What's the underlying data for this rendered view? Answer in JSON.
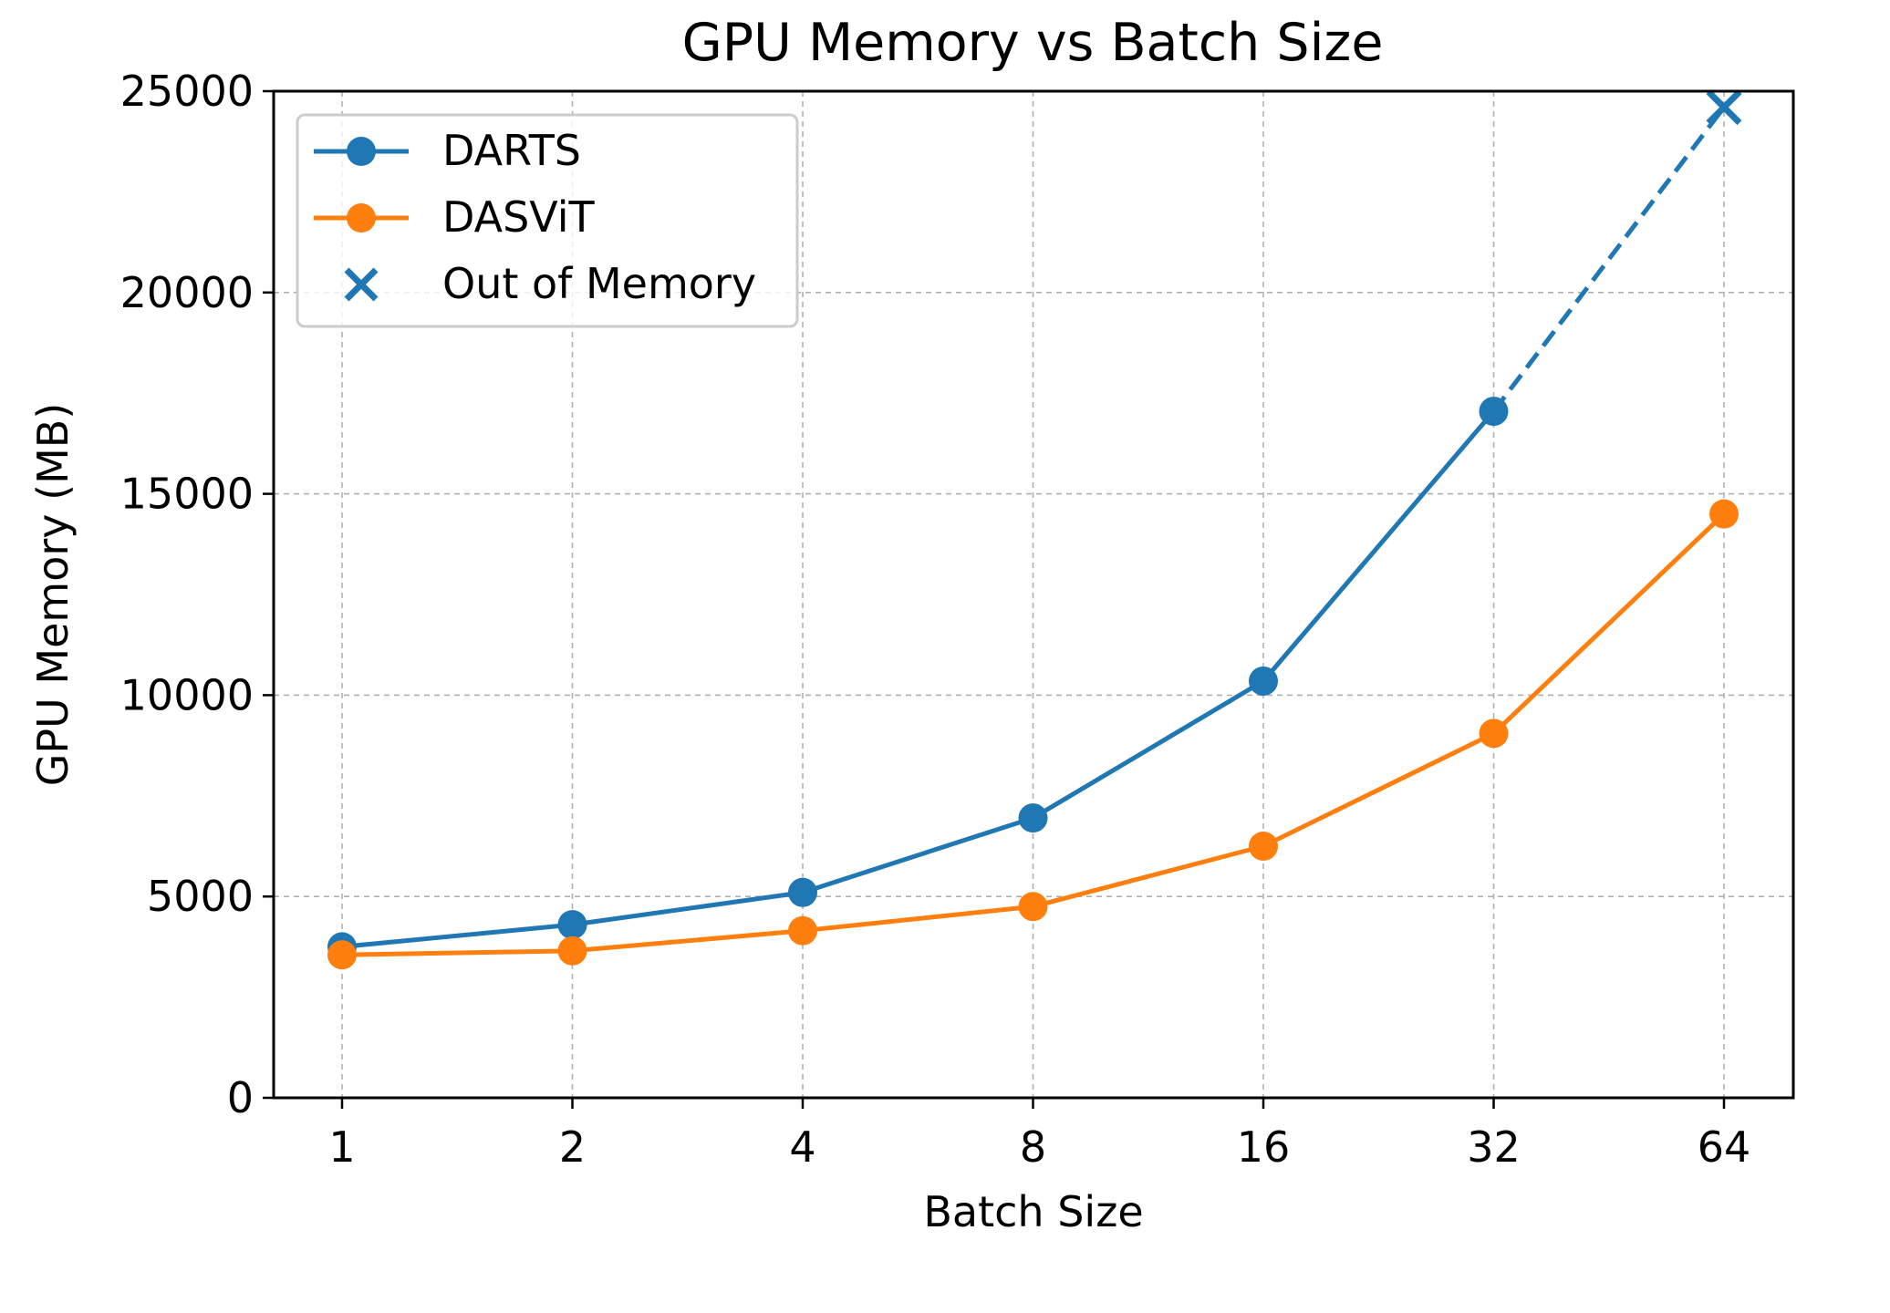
{
  "chart_data": {
    "type": "line",
    "title": "GPU Memory vs Batch Size",
    "xlabel": "Batch Size",
    "ylabel": "GPU Memory (MB)",
    "categories": [
      "1",
      "2",
      "4",
      "8",
      "16",
      "32",
      "64"
    ],
    "ylim": [
      0,
      25000
    ],
    "yticks": [
      "0",
      "5000",
      "10000",
      "15000",
      "20000",
      "25000"
    ],
    "grid": true,
    "legend_position": "top-left",
    "series": [
      {
        "name": "DARTS",
        "color": "#1f77b4",
        "values": [
          3750,
          4300,
          5100,
          6950,
          10350,
          17050,
          null
        ],
        "oom_value": 24600
      },
      {
        "name": "DASViT",
        "color": "#ff7f0e",
        "values": [
          3550,
          3650,
          4150,
          4750,
          6250,
          9050,
          14500
        ]
      }
    ],
    "oom_legend_label": "Out of Memory"
  }
}
